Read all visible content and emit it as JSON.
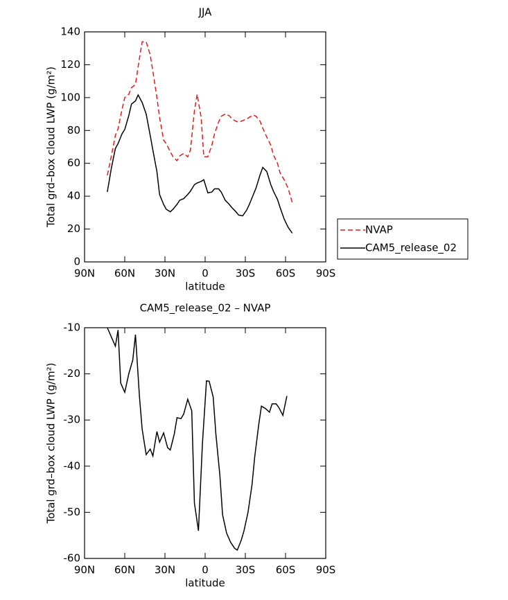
{
  "chart_data": [
    {
      "type": "line",
      "title": "JJA",
      "xlabel": "latitude",
      "ylabel": "Total grd–box cloud LWP (g/m²)",
      "x": [
        73,
        70,
        67,
        65,
        62,
        60,
        57,
        55,
        52,
        50,
        47,
        44,
        41,
        39,
        36,
        34,
        31,
        29,
        26,
        24,
        21,
        19,
        16,
        13,
        11,
        8,
        6,
        3,
        1,
        -2,
        -5,
        -7,
        -10,
        -12,
        -15,
        -18,
        -20,
        -23,
        -25,
        -28,
        -31,
        -33,
        -36,
        -38,
        -41,
        -43,
        -46,
        -49,
        -51,
        -54,
        -56,
        -59,
        -62,
        -65
      ],
      "series": [
        {
          "name": "NVAP",
          "color": "#e41a1c",
          "line_style": "dashed",
          "values": [
            52.7,
            64.5,
            77,
            81,
            93,
            100,
            102,
            106,
            108,
            119,
            134,
            134,
            126,
            116,
            100,
            88,
            74,
            72,
            67,
            64,
            61.6,
            64.5,
            66,
            64,
            68,
            92,
            102,
            88,
            64,
            64,
            71,
            78,
            85,
            88.6,
            90,
            89,
            87,
            85.6,
            85,
            86,
            87,
            88,
            89.4,
            88.6,
            85.6,
            81.4,
            76,
            71,
            65,
            60,
            54,
            50,
            44.7,
            36
          ]
        },
        {
          "name": "CAM5_release_02",
          "color": "#000000",
          "line_style": "solid",
          "values": [
            42.6,
            57,
            69,
            72,
            78,
            80.6,
            89,
            96,
            98,
            101.6,
            97,
            90,
            77,
            68,
            55,
            41,
            35,
            32,
            30.5,
            32,
            35,
            37.5,
            38.5,
            41,
            43,
            47,
            48,
            49,
            50,
            42,
            42.5,
            44.5,
            44.5,
            42.5,
            37.5,
            35,
            33,
            30.5,
            28.5,
            28,
            31.5,
            35,
            41,
            45,
            53,
            57.5,
            55,
            47,
            43,
            38,
            33,
            26,
            21,
            17.5
          ]
        }
      ],
      "xlim": [
        90,
        -90
      ],
      "xticks": [
        {
          "value": 90,
          "label": "90N"
        },
        {
          "value": 60,
          "label": "60N"
        },
        {
          "value": 30,
          "label": "30N"
        },
        0,
        {
          "value": -30,
          "label": "30S"
        },
        {
          "value": -60,
          "label": "60S"
        },
        {
          "value": -90,
          "label": "90S"
        }
      ],
      "ylim": [
        0,
        140
      ],
      "yticks": [
        0,
        20,
        40,
        60,
        80,
        100,
        120,
        140
      ],
      "legend": "right"
    },
    {
      "type": "line",
      "title": "CAM5_release_02 – NVAP",
      "xlabel": "latitude",
      "ylabel": "Total grd–box cloud LWP (g/m²)",
      "x": [
        73,
        67,
        65,
        63,
        60,
        57,
        54,
        52,
        49,
        47,
        44,
        41,
        39,
        36,
        34,
        31,
        28,
        26,
        23,
        21,
        18,
        16,
        13,
        10,
        8,
        5,
        2,
        -1,
        -3,
        -6,
        -8,
        -11,
        -13,
        -16,
        -19,
        -22,
        -24,
        -27,
        -29,
        -32,
        -35,
        -37,
        -40,
        -42,
        -45,
        -48,
        -50,
        -53,
        -55,
        -58,
        -61
      ],
      "values": [
        -10,
        -14,
        -10.5,
        -22,
        -24,
        -20,
        -17,
        -11.5,
        -25,
        -32,
        -37.5,
        -36.3,
        -37.8,
        -32.5,
        -34.8,
        -32.8,
        -36,
        -36.5,
        -33,
        -29.5,
        -29.7,
        -28.7,
        -25.5,
        -28,
        -48,
        -54,
        -35,
        -21.5,
        -21.6,
        -25,
        -33,
        -42,
        -50.5,
        -54.5,
        -56.5,
        -57.8,
        -58.2,
        -56,
        -54,
        -50,
        -44,
        -38,
        -31,
        -27,
        -27.5,
        -28.3,
        -26.5,
        -26.5,
        -27.3,
        -29,
        -24.8
      ],
      "color": "#000000",
      "xlim": [
        90,
        -90
      ],
      "xticks": [
        {
          "value": 90,
          "label": "90N"
        },
        {
          "value": 60,
          "label": "60N"
        },
        {
          "value": 30,
          "label": "30N"
        },
        0,
        {
          "value": -30,
          "label": "30S"
        },
        {
          "value": -60,
          "label": "60S"
        },
        {
          "value": -90,
          "label": "90S"
        }
      ],
      "ylim": [
        -60,
        -10
      ],
      "yticks": [
        -60,
        -50,
        -40,
        -30,
        -20,
        -10
      ]
    }
  ]
}
